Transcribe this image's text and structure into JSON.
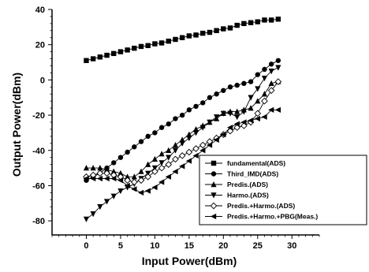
{
  "chart_data": {
    "type": "line",
    "title": "",
    "xlabel": "Input Power(dBm)",
    "ylabel": "Output Power(dBm)",
    "xlim": [
      -5,
      34
    ],
    "ylim": [
      -88,
      40
    ],
    "x_ticks": [
      0,
      5,
      10,
      15,
      20,
      25,
      30
    ],
    "y_ticks": [
      -80,
      -60,
      -40,
      -20,
      0,
      20,
      40
    ],
    "x_tick_labels": [
      "0",
      "5",
      "10",
      "15",
      "20",
      "25",
      "30"
    ],
    "y_tick_labels": [
      "-80",
      "-60",
      "-40",
      "-20",
      "0",
      "20",
      "40"
    ],
    "grid": false,
    "legend_position": "bottom-right",
    "series": [
      {
        "name": "fundamental(ADS)",
        "marker": "square",
        "x": [
          0,
          1,
          2,
          3,
          4,
          5,
          6,
          7,
          8,
          9,
          10,
          11,
          12,
          13,
          14,
          15,
          16,
          17,
          18,
          19,
          20,
          21,
          22,
          23,
          24,
          25,
          26,
          27,
          28
        ],
        "values": [
          11,
          12,
          13,
          14,
          15,
          16,
          17,
          18,
          19,
          19.5,
          20.5,
          21,
          22,
          23,
          24,
          25,
          25.5,
          26.5,
          27,
          28,
          29,
          29.5,
          31,
          32,
          32.5,
          33,
          34,
          34,
          34.5
        ]
      },
      {
        "name": "Third_IMD(ADS)",
        "marker": "circle",
        "x": [
          0,
          1,
          2,
          3,
          4,
          5,
          6,
          7,
          8,
          9,
          10,
          11,
          12,
          13,
          14,
          15,
          16,
          17,
          18,
          19,
          20,
          21,
          22,
          23,
          24,
          25,
          26,
          27,
          28
        ],
        "values": [
          -57,
          -55,
          -53,
          -50,
          -47,
          -44,
          -41,
          -38,
          -35,
          -32,
          -30,
          -27,
          -25,
          -22,
          -20,
          -17,
          -15,
          -13,
          -10,
          -8,
          -6,
          -4,
          -3,
          -2,
          -1,
          3,
          6,
          9,
          11
        ]
      },
      {
        "name": "Predis.(ADS)",
        "marker": "triangle-up",
        "x": [
          0,
          1,
          2,
          3,
          4,
          5,
          6,
          7,
          8,
          9,
          10,
          11,
          12,
          13,
          14,
          15,
          16,
          17,
          18,
          19,
          20,
          21,
          22,
          23,
          24,
          25,
          26,
          27,
          28
        ],
        "values": [
          -50,
          -50,
          -50,
          -51,
          -52,
          -53,
          -55,
          -55,
          -52,
          -48,
          -45,
          -42,
          -40,
          -37,
          -34,
          -31,
          -28,
          -26,
          -24,
          -22,
          -19,
          -18,
          -18,
          -17,
          -16,
          -12,
          -8,
          -2,
          -1
        ]
      },
      {
        "name": "Harmo.(ADS)",
        "marker": "triangle-down",
        "x": [
          0,
          1,
          2,
          3,
          4,
          5,
          6,
          7,
          8,
          9,
          10,
          11,
          12,
          13,
          14,
          15,
          16,
          17,
          18,
          19,
          20,
          21,
          22,
          23,
          24,
          25,
          26,
          27,
          28
        ],
        "values": [
          -79,
          -76,
          -72,
          -69,
          -66,
          -63,
          -61,
          -59,
          -56,
          -53,
          -50,
          -47,
          -44,
          -40,
          -36,
          -33,
          -30,
          -27,
          -24,
          -21,
          -19,
          -19,
          -21,
          -18,
          -10,
          -5,
          1,
          5,
          7
        ]
      },
      {
        "name": "Predis.+Harmo.(ADS)",
        "marker": "diamond",
        "x": [
          0,
          1,
          2,
          3,
          4,
          5,
          6,
          7,
          8,
          9,
          10,
          11,
          12,
          13,
          14,
          15,
          16,
          17,
          18,
          19,
          20,
          21,
          22,
          23,
          24,
          25,
          26,
          27,
          28
        ],
        "values": [
          -55,
          -54,
          -53,
          -53,
          -54,
          -55,
          -57,
          -58,
          -57,
          -55,
          -52,
          -50,
          -48,
          -45,
          -43,
          -41,
          -39,
          -37,
          -35,
          -33,
          -31,
          -29,
          -27,
          -26,
          -24,
          -19,
          -12,
          -6,
          -1
        ]
      },
      {
        "name": "Predis.+Harmo.+PBG(Meas.)",
        "marker": "triangle-left",
        "x": [
          0,
          1,
          2,
          3,
          4,
          5,
          6,
          7,
          8,
          9,
          10,
          11,
          12,
          13,
          14,
          15,
          16,
          17,
          18,
          19,
          20,
          21,
          22,
          23,
          24,
          25,
          26,
          27,
          28
        ],
        "values": [
          -56,
          -56,
          -56,
          -56,
          -56,
          -57,
          -60,
          -62,
          -64,
          -63,
          -61,
          -58,
          -55,
          -52,
          -49,
          -46,
          -43,
          -40,
          -37,
          -34,
          -31,
          -27,
          -25,
          -24,
          -23,
          -22,
          -21,
          -17,
          -17
        ]
      }
    ]
  }
}
